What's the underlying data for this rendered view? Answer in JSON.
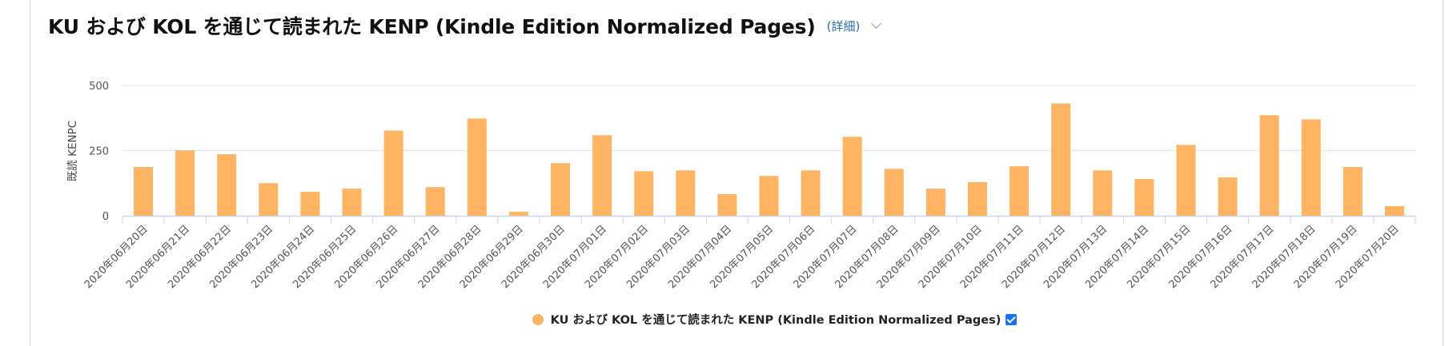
{
  "header": {
    "title": "KU および KOL を通じて読まれた KENP (Kindle Edition Normalized Pages)",
    "details_link": "(詳細)",
    "dropdown_icon": "chevron-down-icon"
  },
  "colors": {
    "bar": "#FFB463",
    "gridline": "#e6e6e6",
    "axis": "#ccd6eb",
    "tick_text": "#555555",
    "checkbox": "#1a73e8"
  },
  "legend": {
    "label": "KU および KOL を通じて読まれた KENP (Kindle Edition Normalized Pages)",
    "checked": true
  },
  "chart_data": {
    "type": "bar",
    "title": "KU および KOL を通じて読まれた KENP (Kindle Edition Normalized Pages)",
    "xlabel": "",
    "ylabel": "既読 KENPC",
    "ylim": [
      0,
      500
    ],
    "yticks": [
      0,
      250,
      500
    ],
    "grid": true,
    "legend_position": "bottom",
    "categories": [
      "2020年06月20日",
      "2020年06月21日",
      "2020年06月22日",
      "2020年06月23日",
      "2020年06月24日",
      "2020年06月25日",
      "2020年06月26日",
      "2020年06月27日",
      "2020年06月28日",
      "2020年06月29日",
      "2020年06月30日",
      "2020年07月01日",
      "2020年07月02日",
      "2020年07月03日",
      "2020年07月04日",
      "2020年07月05日",
      "2020年07月06日",
      "2020年07月07日",
      "2020年07月08日",
      "2020年07月09日",
      "2020年07月10日",
      "2020年07月11日",
      "2020年07月12日",
      "2020年07月13日",
      "2020年07月14日",
      "2020年07月15日",
      "2020年07月16日",
      "2020年07月17日",
      "2020年07月18日",
      "2020年07月19日",
      "2020年07月20日"
    ],
    "series": [
      {
        "name": "KU および KOL を通じて読まれた KENP (Kindle Edition Normalized Pages)",
        "values": [
          187,
          251,
          236,
          125,
          92,
          104,
          327,
          110,
          373,
          15,
          202,
          309,
          171,
          174,
          83,
          153,
          174,
          303,
          180,
          104,
          129,
          190,
          431,
          174,
          141,
          272,
          147,
          386,
          370,
          187,
          37
        ]
      }
    ]
  }
}
